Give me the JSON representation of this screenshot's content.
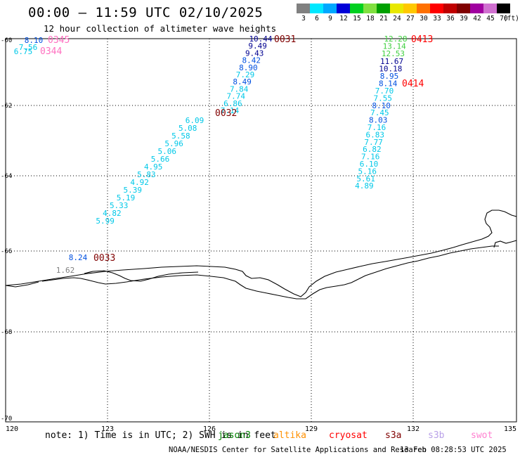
{
  "header": {
    "title": "00:00 – 11:59 UTC 02/10/2025",
    "subtitle": "12 hour collection of altimeter wave heights"
  },
  "legend": {
    "unit_label": "(ft)",
    "bins": [
      {
        "label": "3",
        "color": "#808080"
      },
      {
        "label": "6",
        "color": "#00e8ff"
      },
      {
        "label": "9",
        "color": "#00a8ff"
      },
      {
        "label": "12",
        "color": "#0000d8"
      },
      {
        "label": "15",
        "color": "#00d020"
      },
      {
        "label": "18",
        "color": "#80e040"
      },
      {
        "label": "21",
        "color": "#00a000"
      },
      {
        "label": "24",
        "color": "#e8e800"
      },
      {
        "label": "27",
        "color": "#ffc800"
      },
      {
        "label": "30",
        "color": "#ff7000"
      },
      {
        "label": "33",
        "color": "#ff0000"
      },
      {
        "label": "36",
        "color": "#c00000"
      },
      {
        "label": "39",
        "color": "#800000"
      },
      {
        "label": "42",
        "color": "#a000a0"
      },
      {
        "label": "45",
        "color": "#d070d0"
      },
      {
        "label": "70",
        "color": "#000000"
      }
    ]
  },
  "map": {
    "lon_ticks": [
      "120",
      "123",
      "126",
      "129",
      "132",
      "135"
    ],
    "lat_ticks": [
      "-60",
      "-62",
      "-64",
      "-66",
      "-68",
      "-70"
    ],
    "lon_range": [
      120,
      135
    ],
    "lat_range": [
      -70,
      -60
    ]
  },
  "colors": {
    "cyan": "#00c8e8",
    "blue": "#0050e0",
    "navy": "#000090",
    "green": "#40d040",
    "darkred": "#800000",
    "red": "#ff0000",
    "pink": "#ff70c0",
    "gray": "#808080"
  },
  "tracks": [
    {
      "sat": "jason3",
      "time": "0031",
      "time_color": "darkred",
      "points": [
        {
          "v": "10.44",
          "c": "navy"
        },
        {
          "v": "9.49",
          "c": "navy"
        },
        {
          "v": "9.43",
          "c": "navy"
        },
        {
          "v": "8.42",
          "c": "blue"
        },
        {
          "v": "8.90",
          "c": "blue"
        },
        {
          "v": "7.29",
          "c": "cyan"
        },
        {
          "v": "8.49",
          "c": "blue"
        },
        {
          "v": "7.84",
          "c": "cyan"
        },
        {
          "v": "7.74",
          "c": "cyan"
        },
        {
          "v": "6.86",
          "c": "cyan"
        },
        {
          "v": "7.14",
          "c": "cyan"
        }
      ]
    },
    {
      "sat": "jason3",
      "time": "0032",
      "time_color": "darkred",
      "points": [
        {
          "v": "6.09",
          "c": "cyan"
        },
        {
          "v": "5.08",
          "c": "cyan"
        },
        {
          "v": "5.58",
          "c": "cyan"
        },
        {
          "v": "5.96",
          "c": "cyan"
        },
        {
          "v": "5.06",
          "c": "cyan"
        },
        {
          "v": "5.66",
          "c": "cyan"
        },
        {
          "v": "4.95",
          "c": "cyan"
        },
        {
          "v": "5.83",
          "c": "cyan"
        },
        {
          "v": "4.92",
          "c": "cyan"
        },
        {
          "v": "5.39",
          "c": "cyan"
        },
        {
          "v": "5.19",
          "c": "cyan"
        },
        {
          "v": "5.33",
          "c": "cyan"
        },
        {
          "v": "4.82",
          "c": "cyan"
        },
        {
          "v": "5.99",
          "c": "cyan"
        }
      ]
    },
    {
      "sat": "jason3",
      "time": "0033",
      "time_color": "darkred",
      "points": [
        {
          "v": "8.24",
          "c": "blue"
        },
        {
          "v": "1.62",
          "c": "gray"
        }
      ]
    },
    {
      "sat": "swot",
      "time": "0345",
      "time_color": "pink",
      "points": [
        {
          "v": "8.10",
          "c": "blue"
        },
        {
          "v": "7.56",
          "c": "cyan"
        }
      ]
    },
    {
      "sat": "swot",
      "time": "0344",
      "time_color": "pink",
      "points": [
        {
          "v": "6.75",
          "c": "cyan"
        }
      ]
    },
    {
      "sat": "cryosat",
      "time": "0413",
      "time_color": "red",
      "points": [
        {
          "v": "12.28",
          "c": "green"
        },
        {
          "v": "13.14",
          "c": "green"
        },
        {
          "v": "12.53",
          "c": "green"
        },
        {
          "v": "11.67",
          "c": "navy"
        },
        {
          "v": "10.18",
          "c": "navy"
        },
        {
          "v": "8.95",
          "c": "blue"
        },
        {
          "v": "8.14",
          "c": "blue"
        }
      ]
    },
    {
      "sat": "cryosat",
      "time": "0414",
      "time_color": "red",
      "points": [
        {
          "v": "7.70",
          "c": "cyan"
        },
        {
          "v": "7.55",
          "c": "cyan"
        },
        {
          "v": "8.10",
          "c": "blue"
        },
        {
          "v": "7.45",
          "c": "cyan"
        },
        {
          "v": "8.03",
          "c": "blue"
        },
        {
          "v": "7.16",
          "c": "cyan"
        },
        {
          "v": "6.83",
          "c": "cyan"
        },
        {
          "v": "7.77",
          "c": "cyan"
        },
        {
          "v": "6.82",
          "c": "cyan"
        },
        {
          "v": "7.16",
          "c": "cyan"
        },
        {
          "v": "6.10",
          "c": "cyan"
        },
        {
          "v": "5.16",
          "c": "cyan"
        },
        {
          "v": "5.61",
          "c": "cyan"
        },
        {
          "v": "4.89",
          "c": "cyan"
        }
      ]
    }
  ],
  "footer": {
    "note": "note: 1) Time is in UTC; 2) SWH is in feet",
    "satellites": [
      {
        "name": "jason3",
        "color": "#008000"
      },
      {
        "name": "altika",
        "color": "#ff9000"
      },
      {
        "name": "cryosat",
        "color": "#ff0000"
      },
      {
        "name": "s3a",
        "color": "#800000"
      },
      {
        "name": "s3b",
        "color": "#b8a0e8"
      },
      {
        "name": "swot",
        "color": "#ff80d0"
      }
    ],
    "credit": "NOAA/NESDIS Center for Satellite Applications and Research",
    "timestamp": "13 Feb 08:28:53 UTC 2025"
  }
}
